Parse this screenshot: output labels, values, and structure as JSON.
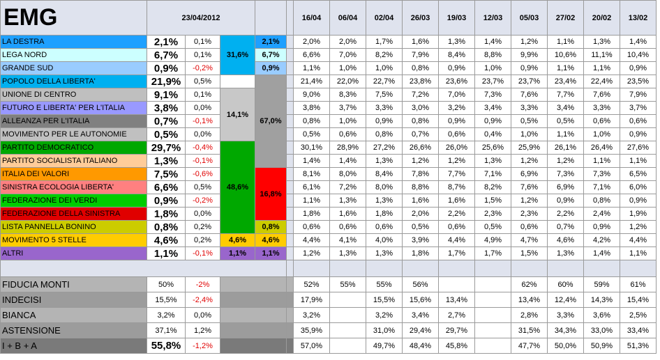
{
  "header": {
    "title": "EMG",
    "date": "23/04/2012",
    "dates": [
      "16/04",
      "06/04",
      "02/04",
      "26/03",
      "19/03",
      "12/03",
      "05/03",
      "27/02",
      "20/02",
      "13/02"
    ]
  },
  "parties": [
    {
      "name": "LA DESTRA",
      "color": "#1ea0ff",
      "value": "2,1%",
      "delta": "0,1%",
      "deltaRed": false,
      "history": [
        "2,0%",
        "2,0%",
        "1,7%",
        "1,6%",
        "1,3%",
        "1,4%",
        "1,2%",
        "1,1%",
        "1,3%",
        "1,4%"
      ]
    },
    {
      "name": "LEGA NORD",
      "color": "#ccffff",
      "value": "6,7%",
      "delta": "0,1%",
      "deltaRed": false,
      "history": [
        "6,6%",
        "7,0%",
        "8,2%",
        "7,9%",
        "8,4%",
        "8,8%",
        "9,9%",
        "10,6%",
        "11,1%",
        "10,4%"
      ]
    },
    {
      "name": "GRANDE SUD",
      "color": "#99ccff",
      "value": "0,9%",
      "delta": "-0,2%",
      "deltaRed": true,
      "history": [
        "1,1%",
        "1,0%",
        "1,0%",
        "0,8%",
        "0,9%",
        "1,0%",
        "0,9%",
        "1,1%",
        "1,1%",
        "0,9%"
      ]
    },
    {
      "name": "POPOLO DELLA LIBERTA'",
      "color": "#00b0f0",
      "value": "21,9%",
      "delta": "0,5%",
      "deltaRed": false,
      "history": [
        "21,4%",
        "22,0%",
        "22,7%",
        "23,8%",
        "23,6%",
        "23,7%",
        "23,7%",
        "23,4%",
        "22,4%",
        "23,5%"
      ]
    },
    {
      "name": "UNIONE DI CENTRO",
      "color": "#bfbfbf",
      "value": "9,1%",
      "delta": "0,1%",
      "deltaRed": false,
      "history": [
        "9,0%",
        "8,3%",
        "7,5%",
        "7,2%",
        "7,0%",
        "7,3%",
        "7,6%",
        "7,7%",
        "7,6%",
        "7,9%"
      ]
    },
    {
      "name": "FUTURO E LIBERTA' PER L'ITALIA",
      "color": "#9999ff",
      "value": "3,8%",
      "delta": "0,0%",
      "deltaRed": false,
      "history": [
        "3,8%",
        "3,7%",
        "3,3%",
        "3,0%",
        "3,2%",
        "3,4%",
        "3,3%",
        "3,4%",
        "3,3%",
        "3,7%"
      ]
    },
    {
      "name": "ALLEANZA PER L'ITALIA",
      "color": "#808080",
      "value": "0,7%",
      "delta": "-0,1%",
      "deltaRed": true,
      "history": [
        "0,8%",
        "1,0%",
        "0,9%",
        "0,8%",
        "0,9%",
        "0,9%",
        "0,5%",
        "0,5%",
        "0,6%",
        "0,6%"
      ]
    },
    {
      "name": "MOVIMENTO PER LE AUTONOMIE",
      "color": "#c0c0c0",
      "value": "0,5%",
      "delta": "0,0%",
      "deltaRed": false,
      "history": [
        "0,5%",
        "0,6%",
        "0,8%",
        "0,7%",
        "0,6%",
        "0,4%",
        "1,0%",
        "1,1%",
        "1,0%",
        "0,9%"
      ]
    },
    {
      "name": "PARTITO DEMOCRATICO",
      "color": "#00a800",
      "value": "29,7%",
      "delta": "-0,4%",
      "deltaRed": true,
      "history": [
        "30,1%",
        "28,9%",
        "27,2%",
        "26,6%",
        "26,0%",
        "25,6%",
        "25,9%",
        "26,1%",
        "26,4%",
        "27,6%"
      ]
    },
    {
      "name": "PARTITO SOCIALISTA ITALIANO",
      "color": "#ffcc99",
      "value": "1,3%",
      "delta": "-0,1%",
      "deltaRed": true,
      "history": [
        "1,4%",
        "1,4%",
        "1,3%",
        "1,2%",
        "1,2%",
        "1,3%",
        "1,2%",
        "1,2%",
        "1,1%",
        "1,1%"
      ]
    },
    {
      "name": "ITALIA DEI VALORI",
      "color": "#ff9900",
      "value": "7,5%",
      "delta": "-0,6%",
      "deltaRed": true,
      "history": [
        "8,1%",
        "8,0%",
        "8,4%",
        "7,8%",
        "7,7%",
        "7,1%",
        "6,9%",
        "7,3%",
        "7,3%",
        "6,5%"
      ]
    },
    {
      "name": "SINISTRA ECOLOGIA LIBERTA'",
      "color": "#ff8080",
      "value": "6,6%",
      "delta": "0,5%",
      "deltaRed": false,
      "history": [
        "6,1%",
        "7,2%",
        "8,0%",
        "8,8%",
        "8,7%",
        "8,2%",
        "7,6%",
        "6,9%",
        "7,1%",
        "6,0%"
      ]
    },
    {
      "name": "FEDERAZIONE DEI VERDI",
      "color": "#00cc00",
      "value": "0,9%",
      "delta": "-0,2%",
      "deltaRed": true,
      "history": [
        "1,1%",
        "1,3%",
        "1,3%",
        "1,6%",
        "1,6%",
        "1,5%",
        "1,2%",
        "0,9%",
        "0,8%",
        "0,9%"
      ]
    },
    {
      "name": "FEDERAZIONE DELLA SINISTRA",
      "color": "#e00000",
      "value": "1,8%",
      "delta": "0,0%",
      "deltaRed": false,
      "history": [
        "1,8%",
        "1,6%",
        "1,8%",
        "2,0%",
        "2,2%",
        "2,3%",
        "2,3%",
        "2,2%",
        "2,4%",
        "1,9%"
      ]
    },
    {
      "name": "LISTA PANNELLA BONINO",
      "color": "#cccc00",
      "value": "0,8%",
      "delta": "0,2%",
      "deltaRed": false,
      "history": [
        "0,6%",
        "0,6%",
        "0,6%",
        "0,5%",
        "0,6%",
        "0,5%",
        "0,6%",
        "0,7%",
        "0,9%",
        "1,2%"
      ]
    },
    {
      "name": "MOVIMENTO 5 STELLE",
      "color": "#ffcc00",
      "value": "4,6%",
      "delta": "0,2%",
      "deltaRed": false,
      "history": [
        "4,4%",
        "4,1%",
        "4,0%",
        "3,9%",
        "4,4%",
        "4,9%",
        "4,7%",
        "4,6%",
        "4,2%",
        "4,4%"
      ]
    },
    {
      "name": "ALTRI",
      "color": "#9966cc",
      "value": "1,1%",
      "delta": "-0,1%",
      "deltaRed": true,
      "history": [
        "1,2%",
        "1,3%",
        "1,3%",
        "1,8%",
        "1,7%",
        "1,7%",
        "1,5%",
        "1,3%",
        "1,4%",
        "1,1%"
      ]
    }
  ],
  "coalitions": {
    "centerRight": "31,6%",
    "center": "14,1%",
    "bigCenter": "67,0%",
    "left": "48,6%",
    "leftSmall": "16,8%",
    "m5sA": "4,6%",
    "m5sB": "4,6%",
    "altriA": "1,1%",
    "altriB": "1,1%",
    "destra": "2,1%",
    "lega": "6,7%",
    "sud": "0,9%",
    "pannella": "0,8%"
  },
  "coalitionColors": {
    "centerRight": "#00b0f0",
    "center": "#c8c8c8",
    "bigCenter": "#a0a0a0",
    "left": "#00a800",
    "leftSmall": "#ff0000",
    "yellow": "#ffcc00",
    "purple": "#9966cc",
    "olive": "#cccc00"
  },
  "extra": [
    {
      "name": "FIDUCIA MONTI",
      "value": "50%",
      "delta": "-2%",
      "deltaRed": true,
      "bigValue": false,
      "history": [
        "52%",
        "55%",
        "55%",
        "56%",
        "",
        "",
        "62%",
        "60%",
        "59%",
        "61%"
      ]
    },
    {
      "name": "INDECISI",
      "value": "15,5%",
      "delta": "-2,4%",
      "deltaRed": true,
      "bigValue": false,
      "history": [
        "17,9%",
        "",
        "15,5%",
        "15,6%",
        "13,4%",
        "",
        "13,4%",
        "12,4%",
        "14,3%",
        "15,4%"
      ]
    },
    {
      "name": "BIANCA",
      "value": "3,2%",
      "delta": "0,0%",
      "deltaRed": false,
      "bigValue": false,
      "history": [
        "3,2%",
        "",
        "3,2%",
        "3,4%",
        "2,7%",
        "",
        "2,8%",
        "3,3%",
        "3,6%",
        "2,5%"
      ]
    },
    {
      "name": "ASTENSIONE",
      "value": "37,1%",
      "delta": "1,2%",
      "deltaRed": false,
      "bigValue": false,
      "history": [
        "35,9%",
        "",
        "31,0%",
        "29,4%",
        "29,7%",
        "",
        "31,5%",
        "34,3%",
        "33,0%",
        "33,4%"
      ]
    },
    {
      "name": "I + B + A",
      "value": "55,8%",
      "delta": "-1,2%",
      "deltaRed": true,
      "bigValue": true,
      "history": [
        "57,0%",
        "",
        "49,7%",
        "48,4%",
        "45,8%",
        "",
        "47,7%",
        "50,0%",
        "50,9%",
        "51,3%"
      ]
    }
  ]
}
